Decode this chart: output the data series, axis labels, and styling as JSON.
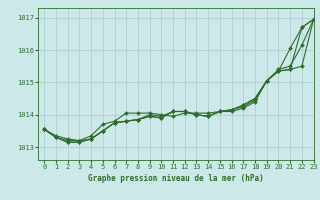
{
  "title": "Graphe pression niveau de la mer (hPa)",
  "bg_color": "#cce8e8",
  "grid_color": "#aacccc",
  "line_color": "#2d6e2d",
  "xlim": [
    -0.5,
    23
  ],
  "ylim": [
    1012.6,
    1017.3
  ],
  "yticks": [
    1013,
    1014,
    1015,
    1016,
    1017
  ],
  "xticks": [
    0,
    1,
    2,
    3,
    4,
    5,
    6,
    7,
    8,
    9,
    10,
    11,
    12,
    13,
    14,
    15,
    16,
    17,
    18,
    19,
    20,
    21,
    22,
    23
  ],
  "series": [
    [
      1013.55,
      1013.3,
      1013.2,
      1013.2,
      1013.35,
      1013.7,
      1013.8,
      1014.05,
      1014.05,
      1014.05,
      1014.0,
      1013.95,
      1014.05,
      1014.05,
      1014.05,
      1014.1,
      1014.1,
      1014.2,
      1014.4,
      1015.05,
      1015.35,
      1016.05,
      1016.7,
      1016.95
    ],
    [
      1013.55,
      1013.35,
      1013.25,
      1013.2,
      1013.25,
      1013.5,
      1013.75,
      1013.8,
      1013.85,
      1014.0,
      1013.95,
      1014.1,
      1014.1,
      1014.0,
      1013.95,
      1014.1,
      1014.15,
      1014.25,
      1014.45,
      1015.05,
      1015.4,
      1015.5,
      1016.15,
      1016.95
    ],
    [
      1013.55,
      1013.3,
      1013.15,
      1013.15,
      1013.25,
      1013.5,
      1013.75,
      1013.8,
      1013.85,
      1013.95,
      1013.9,
      1014.1,
      1014.1,
      1014.0,
      1013.95,
      1014.1,
      1014.15,
      1014.3,
      1014.5,
      1015.05,
      1015.35,
      1015.4,
      1015.5,
      1016.95
    ],
    [
      1013.55,
      1013.3,
      1013.15,
      1013.15,
      1013.25,
      1013.5,
      1013.75,
      1013.8,
      1013.85,
      1013.95,
      1013.9,
      1014.1,
      1014.1,
      1014.0,
      1013.95,
      1014.1,
      1014.15,
      1014.3,
      1014.5,
      1015.05,
      1015.35,
      1015.4,
      1016.7,
      1016.95
    ]
  ]
}
